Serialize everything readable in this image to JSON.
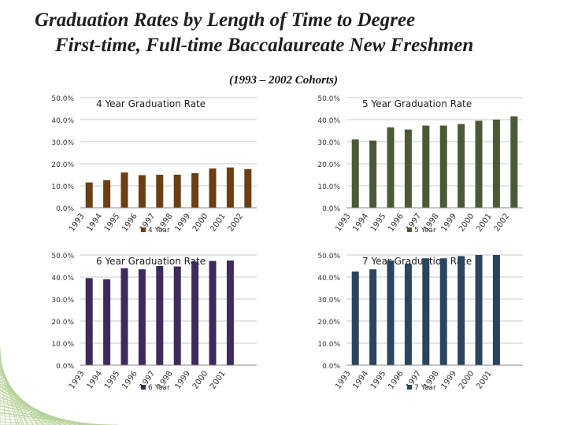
{
  "header": {
    "title_line1": "Graduation Rates by Length of Time to Degree",
    "title_line2": "First-time, Full-time Baccalaureate New Freshmen",
    "subtitle": "(1993 – 2002 Cohorts)"
  },
  "chart_data": [
    {
      "type": "bar",
      "title": "4 Year Graduation Rate",
      "categories": [
        "1993",
        "1994",
        "1995",
        "1996",
        "1997",
        "1998",
        "1999",
        "2000",
        "2001",
        "2002"
      ],
      "series": [
        {
          "name": "4 Year",
          "values": [
            11.5,
            12.5,
            16.0,
            14.8,
            15.0,
            15.0,
            15.7,
            17.8,
            18.3,
            17.5
          ]
        }
      ],
      "ylim": [
        0,
        50
      ],
      "yticks": [
        "0.0%",
        "10.0%",
        "20.0%",
        "30.0%",
        "40.0%",
        "50.0%"
      ],
      "grid": true,
      "legend": "bottom",
      "color": "#6b3e14"
    },
    {
      "type": "bar",
      "title": "5 Year Graduation Rate",
      "categories": [
        "1993",
        "1994",
        "1995",
        "1996",
        "1997",
        "1998",
        "1999",
        "2000",
        "2001",
        "2002"
      ],
      "series": [
        {
          "name": "5 Year",
          "values": [
            31.0,
            30.5,
            36.5,
            35.5,
            37.3,
            37.3,
            38.0,
            39.5,
            40.0,
            41.5
          ]
        }
      ],
      "ylim": [
        0,
        50
      ],
      "yticks": [
        "0.0%",
        "10.0%",
        "20.0%",
        "30.0%",
        "40.0%",
        "50.0%"
      ],
      "grid": true,
      "legend": "bottom",
      "color": "#4a5a36"
    },
    {
      "type": "bar",
      "title": "6 Year Graduation Rate",
      "categories": [
        "1993",
        "1994",
        "1995",
        "1996",
        "1997",
        "1998",
        "1999",
        "2000",
        "2001"
      ],
      "series": [
        {
          "name": "6 Year",
          "values": [
            39.5,
            39.0,
            44.0,
            43.5,
            45.0,
            44.8,
            47.0,
            47.3,
            47.5
          ]
        }
      ],
      "ylim": [
        0,
        50
      ],
      "yticks": [
        "0.0%",
        "10.0%",
        "20.0%",
        "30.0%",
        "40.0%",
        "50.0%"
      ],
      "grid": true,
      "legend": "bottom",
      "color": "#3f2a5c"
    },
    {
      "type": "bar",
      "title": "7 Year Graduation Rate",
      "categories": [
        "1993",
        "1994",
        "1995",
        "1996",
        "1997",
        "1998",
        "1999",
        "2000",
        "2001"
      ],
      "series": [
        {
          "name": "7 Year",
          "values": [
            42.5,
            43.5,
            47.5,
            46.0,
            48.5,
            48.5,
            49.5,
            50.0,
            50.0
          ]
        }
      ],
      "ylim": [
        0,
        50
      ],
      "yticks": [
        "0.0%",
        "10.0%",
        "20.0%",
        "30.0%",
        "40.0%",
        "50.0%"
      ],
      "grid": true,
      "legend": "bottom",
      "color": "#2b4460"
    }
  ]
}
